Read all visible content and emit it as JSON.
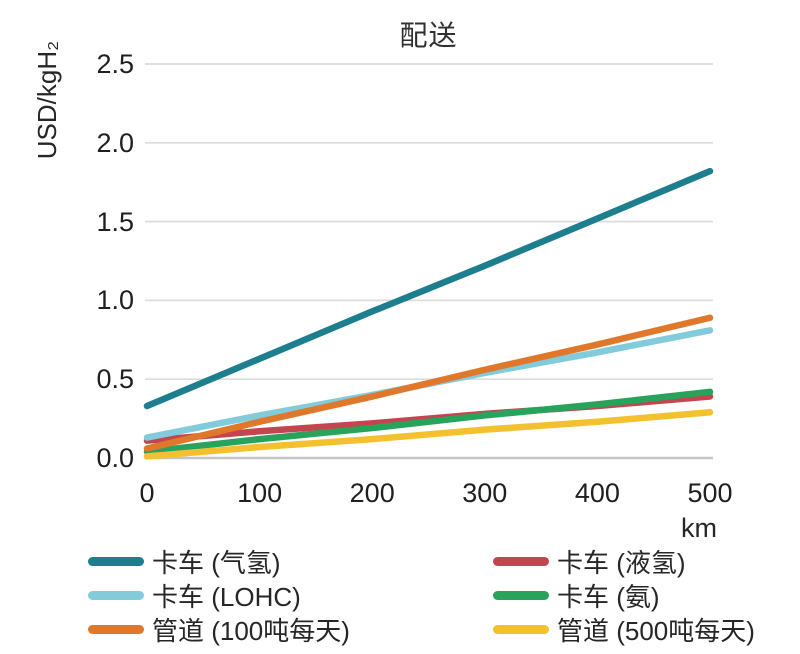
{
  "title": "配送",
  "colors": {
    "grid": "#dcdcdc",
    "zero_axis": "#c4c4c4",
    "text": "#262626"
  },
  "chart_data": {
    "type": "line",
    "title": "配送",
    "xlabel": "km",
    "ylabel": "USD/kgH₂",
    "x": [
      0,
      100,
      200,
      300,
      400,
      500
    ],
    "xticks": [
      "0",
      "100",
      "200",
      "300",
      "400",
      "500"
    ],
    "yticks": [
      "0.0",
      "0.5",
      "1.0",
      "1.5",
      "2.0",
      "2.5"
    ],
    "ytick_values": [
      0,
      0.5,
      1.0,
      1.5,
      2.0,
      2.5
    ],
    "xlim": [
      0,
      500
    ],
    "ylim": [
      0,
      2.5
    ],
    "grid": true,
    "legend_position": "bottom-two-columns",
    "series": [
      {
        "name": "卡车 (气氢)",
        "color": "#1d7f8e",
        "values": [
          0.33,
          0.63,
          0.93,
          1.22,
          1.52,
          1.82
        ]
      },
      {
        "name": "卡车 (液氢)",
        "color": "#c4454f",
        "values": [
          0.11,
          0.17,
          0.22,
          0.28,
          0.33,
          0.39
        ]
      },
      {
        "name": "卡车 (LOHC)",
        "color": "#82cbdb",
        "values": [
          0.13,
          0.27,
          0.4,
          0.54,
          0.67,
          0.81
        ]
      },
      {
        "name": "卡车 (氨)",
        "color": "#28a35c",
        "values": [
          0.04,
          0.12,
          0.19,
          0.27,
          0.34,
          0.42
        ]
      },
      {
        "name": "管道 (100吨每天)",
        "color": "#e0782c",
        "values": [
          0.06,
          0.23,
          0.39,
          0.56,
          0.72,
          0.89
        ]
      },
      {
        "name": "管道 (500吨每天)",
        "color": "#f3c12f",
        "values": [
          0.01,
          0.07,
          0.12,
          0.18,
          0.23,
          0.29
        ]
      }
    ]
  }
}
